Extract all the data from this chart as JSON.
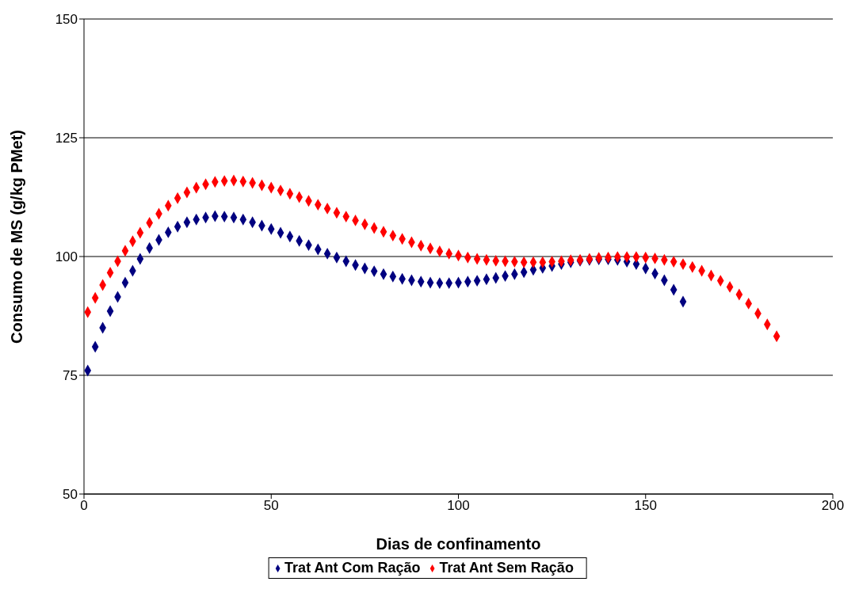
{
  "chart_data": {
    "type": "scatter",
    "xlabel": "Dias de confinamento",
    "ylabel": "Consumo de MS (g/kg PMet)",
    "xlim": [
      0,
      200
    ],
    "xticks": [
      0,
      50,
      100,
      150,
      200
    ],
    "ylim": [
      50,
      150
    ],
    "yticks": [
      50,
      75,
      100,
      125,
      150
    ],
    "grid": "y",
    "legend": "bottom",
    "marker": "diamond",
    "series": [
      {
        "name": "Trat Ant Com Ração",
        "color": "#000080",
        "x": [
          1,
          3,
          5,
          7,
          9,
          11,
          13,
          15,
          17.5,
          20,
          22.5,
          25,
          27.5,
          30,
          32.5,
          35,
          37.5,
          40,
          42.5,
          45,
          47.5,
          50,
          52.5,
          55,
          57.5,
          60,
          62.5,
          65,
          67.5,
          70,
          72.5,
          75,
          77.5,
          80,
          82.5,
          85,
          87.5,
          90,
          92.5,
          95,
          97.5,
          100,
          102.5,
          105,
          107.5,
          110,
          112.5,
          115,
          117.5,
          120,
          122.5,
          125,
          127.5,
          130,
          132.5,
          135,
          137.5,
          140,
          142.5,
          145,
          147.5,
          150,
          152.5,
          155,
          157.5,
          160
        ],
        "values": [
          76,
          81,
          85,
          88.5,
          91.5,
          94.5,
          97,
          99.5,
          101.8,
          103.5,
          105.1,
          106.3,
          107.2,
          107.8,
          108.2,
          108.5,
          108.4,
          108.2,
          107.8,
          107.2,
          106.5,
          105.8,
          105,
          104.2,
          103.3,
          102.4,
          101.5,
          100.6,
          99.8,
          99,
          98.2,
          97.5,
          96.9,
          96.3,
          95.8,
          95.3,
          95,
          94.7,
          94.5,
          94.4,
          94.4,
          94.5,
          94.7,
          94.9,
          95.2,
          95.5,
          95.9,
          96.3,
          96.7,
          97.2,
          97.6,
          98,
          98.4,
          98.8,
          99.1,
          99.3,
          99.4,
          99.4,
          99.3,
          98.9,
          98.4,
          97.5,
          96.4,
          95,
          93,
          90.5
        ]
      },
      {
        "name": "Trat Ant Sem Ração",
        "color": "#ff0000",
        "x": [
          1,
          3,
          5,
          7,
          9,
          11,
          13,
          15,
          17.5,
          20,
          22.5,
          25,
          27.5,
          30,
          32.5,
          35,
          37.5,
          40,
          42.5,
          45,
          47.5,
          50,
          52.5,
          55,
          57.5,
          60,
          62.5,
          65,
          67.5,
          70,
          72.5,
          75,
          77.5,
          80,
          82.5,
          85,
          87.5,
          90,
          92.5,
          95,
          97.5,
          100,
          102.5,
          105,
          107.5,
          110,
          112.5,
          115,
          117.5,
          120,
          122.5,
          125,
          127.5,
          130,
          132.5,
          135,
          137.5,
          140,
          142.5,
          145,
          147.5,
          150,
          152.5,
          155,
          157.5,
          160,
          162.5,
          165,
          167.5,
          170,
          172.5,
          175,
          177.5,
          180,
          182.5,
          185
        ],
        "values": [
          88.3,
          91.3,
          94,
          96.6,
          99,
          101.2,
          103.2,
          105,
          107.1,
          109,
          110.7,
          112.3,
          113.5,
          114.5,
          115.2,
          115.7,
          115.9,
          116,
          115.8,
          115.5,
          115,
          114.5,
          113.9,
          113.2,
          112.5,
          111.7,
          110.9,
          110.1,
          109.2,
          108.4,
          107.6,
          106.8,
          106,
          105.2,
          104.4,
          103.7,
          103,
          102.3,
          101.7,
          101.1,
          100.6,
          100.2,
          99.8,
          99.5,
          99.3,
          99.1,
          99,
          98.9,
          98.8,
          98.8,
          98.8,
          98.9,
          99,
          99.2,
          99.3,
          99.5,
          99.7,
          99.8,
          99.9,
          99.9,
          99.9,
          99.8,
          99.6,
          99.3,
          98.9,
          98.4,
          97.8,
          97,
          96,
          94.9,
          93.6,
          92,
          90.1,
          88,
          85.7,
          83.2
        ]
      }
    ]
  }
}
